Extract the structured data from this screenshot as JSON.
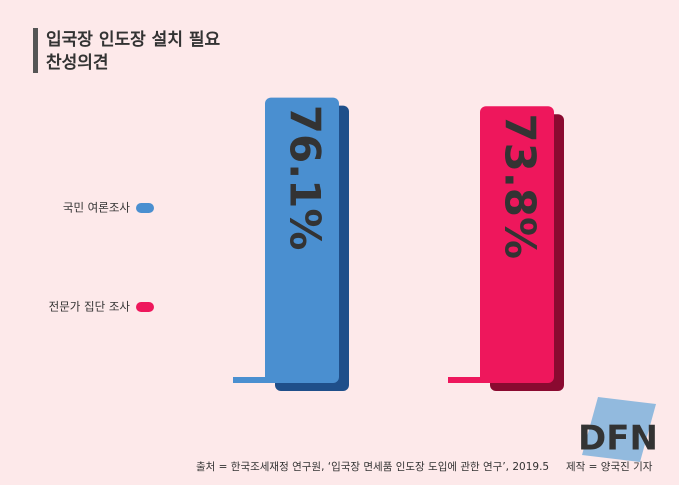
{
  "chart_data": {
    "type": "bar",
    "title": [
      "입국장 인도장 설치 필요",
      "찬성의견"
    ],
    "series": [
      {
        "name": "국민 여론조사",
        "color": "#4a8fd0",
        "shadow": "#1f4f8a",
        "values": [
          76.1
        ],
        "value_labels": [
          "76.1%"
        ]
      },
      {
        "name": "전문가 집단 조사",
        "color": "#ee175c",
        "shadow": "#8a0a30",
        "values": [
          73.8
        ],
        "value_labels": [
          "73.8%"
        ]
      }
    ],
    "ylim": [
      0,
      80
    ],
    "source": "출처 = 한국조세재정 연구원, ‘입국장 면세품 인도장 도입에 관한 연구’, 2019.5",
    "credit": "제작 = 양국진 기자",
    "logo": "DFN"
  }
}
